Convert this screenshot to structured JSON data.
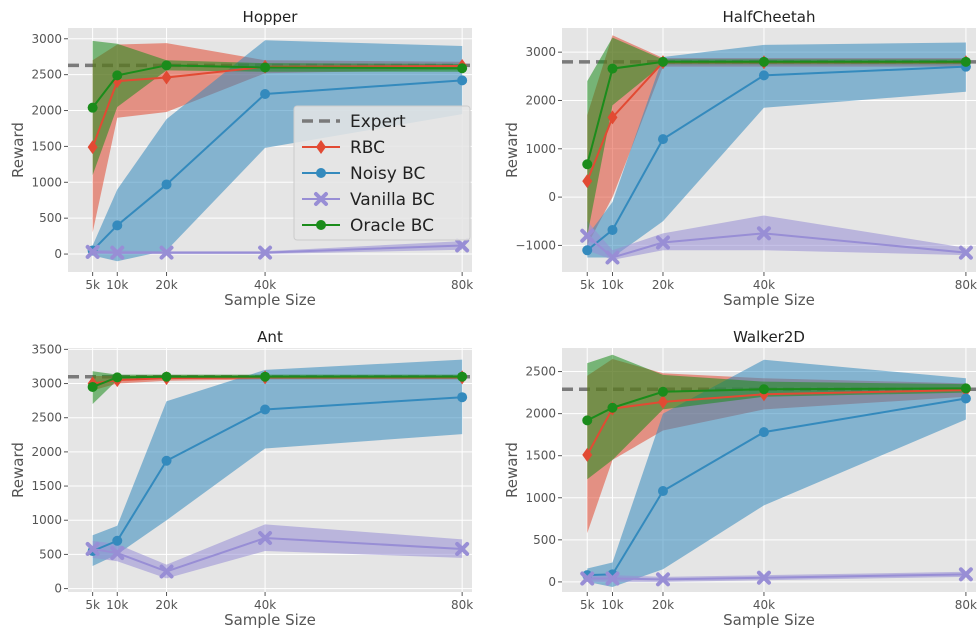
{
  "chart_data": [
    {
      "type": "line",
      "title": "Hopper",
      "xlabel": "Sample Size",
      "ylabel": "Reward",
      "x": [
        5,
        10,
        20,
        40,
        80
      ],
      "x_tick_labels": [
        "5k",
        "10k",
        "20k",
        "40k",
        "80k"
      ],
      "xlim": [
        0,
        82
      ],
      "ylim": [
        -250,
        3150
      ],
      "y_ticks": [
        0,
        500,
        1000,
        1500,
        2000,
        2500,
        3000
      ],
      "expert": 2630,
      "legend": {
        "placement": "center-right",
        "entries": [
          "Expert",
          "RBC",
          "Noisy BC",
          "Vanilla BC",
          "Oracle BC"
        ]
      },
      "series": [
        {
          "name": "RBC",
          "color": "#E24A33",
          "marker": "diamond",
          "values": [
            1490,
            2410,
            2460,
            2610,
            2620
          ],
          "lower": [
            300,
            1900,
            1980,
            2520,
            2570
          ],
          "upper": [
            2700,
            2920,
            2940,
            2700,
            2680
          ]
        },
        {
          "name": "Noisy BC",
          "color": "#348ABD",
          "marker": "circle",
          "values": [
            50,
            400,
            970,
            2230,
            2420
          ],
          "lower": [
            -20,
            -100,
            50,
            1480,
            1950
          ],
          "upper": [
            120,
            900,
            1880,
            2980,
            2900
          ]
        },
        {
          "name": "Vanilla BC",
          "color": "#988ED5",
          "marker": "x",
          "values": [
            30,
            20,
            20,
            20,
            120
          ],
          "lower": [
            0,
            0,
            0,
            0,
            60
          ],
          "upper": [
            60,
            50,
            40,
            40,
            180
          ]
        },
        {
          "name": "Oracle BC",
          "color": "#1B8C1B",
          "marker": "circle",
          "values": [
            2040,
            2490,
            2630,
            2600,
            2590
          ],
          "lower": [
            1100,
            2050,
            2560,
            2540,
            2540
          ],
          "upper": [
            2970,
            2930,
            2700,
            2660,
            2650
          ]
        }
      ]
    },
    {
      "type": "line",
      "title": "HalfCheetah",
      "xlabel": "Sample Size",
      "ylabel": "Reward",
      "x": [
        5,
        10,
        20,
        40,
        80
      ],
      "x_tick_labels": [
        "5k",
        "10k",
        "20k",
        "40k",
        "80k"
      ],
      "xlim": [
        0,
        82
      ],
      "ylim": [
        -1550,
        3500
      ],
      "y_ticks": [
        -1000,
        0,
        1000,
        2000,
        3000
      ],
      "expert": 2800,
      "series": [
        {
          "name": "RBC",
          "color": "#E24A33",
          "marker": "diamond",
          "values": [
            330,
            1650,
            2790,
            2790,
            2790
          ],
          "lower": [
            -1000,
            0,
            2700,
            2700,
            2700
          ],
          "upper": [
            1700,
            3350,
            2880,
            2880,
            2880
          ]
        },
        {
          "name": "Noisy BC",
          "color": "#348ABD",
          "marker": "circle",
          "values": [
            -1100,
            -680,
            1200,
            2520,
            2700
          ],
          "lower": [
            -1250,
            -1250,
            -500,
            1850,
            2180
          ],
          "upper": [
            -800,
            -100,
            2900,
            3150,
            3200
          ]
        },
        {
          "name": "Vanilla BC",
          "color": "#988ED5",
          "marker": "x",
          "values": [
            -800,
            -1250,
            -940,
            -750,
            -1150
          ],
          "lower": [
            -1100,
            -1300,
            -1100,
            -1100,
            -1200
          ],
          "upper": [
            -500,
            -1100,
            -750,
            -380,
            -1050
          ]
        },
        {
          "name": "Oracle BC",
          "color": "#1B8C1B",
          "marker": "circle",
          "values": [
            680,
            2660,
            2800,
            2800,
            2800
          ],
          "lower": [
            -800,
            1900,
            2750,
            2750,
            2750
          ],
          "upper": [
            2400,
            3300,
            2850,
            2850,
            2850
          ]
        }
      ]
    },
    {
      "type": "line",
      "title": "Ant",
      "xlabel": "Sample Size",
      "ylabel": "Reward",
      "x": [
        5,
        10,
        20,
        40,
        80
      ],
      "x_tick_labels": [
        "5k",
        "10k",
        "20k",
        "40k",
        "80k"
      ],
      "xlim": [
        0,
        82
      ],
      "ylim": [
        -50,
        3520
      ],
      "y_ticks": [
        0,
        500,
        1000,
        1500,
        2000,
        2500,
        3000,
        3500
      ],
      "expert": 3100,
      "series": [
        {
          "name": "RBC",
          "color": "#E24A33",
          "marker": "diamond",
          "values": [
            3000,
            3050,
            3080,
            3090,
            3090
          ],
          "lower": [
            2900,
            3000,
            3040,
            3060,
            3060
          ],
          "upper": [
            3110,
            3110,
            3120,
            3120,
            3120
          ]
        },
        {
          "name": "Noisy BC",
          "color": "#348ABD",
          "marker": "circle",
          "values": [
            550,
            700,
            1870,
            2620,
            2800
          ],
          "lower": [
            330,
            500,
            1000,
            2050,
            2260
          ],
          "upper": [
            780,
            920,
            2740,
            3200,
            3350
          ]
        },
        {
          "name": "Vanilla BC",
          "color": "#988ED5",
          "marker": "x",
          "values": [
            580,
            520,
            250,
            740,
            580
          ],
          "lower": [
            450,
            400,
            150,
            550,
            450
          ],
          "upper": [
            700,
            650,
            350,
            940,
            720
          ]
        },
        {
          "name": "Oracle BC",
          "color": "#1B8C1B",
          "marker": "circle",
          "values": [
            2950,
            3090,
            3100,
            3100,
            3100
          ],
          "lower": [
            2700,
            3050,
            3070,
            3070,
            3070
          ],
          "upper": [
            3180,
            3130,
            3130,
            3130,
            3130
          ]
        }
      ]
    },
    {
      "type": "line",
      "title": "Walker2D",
      "xlabel": "Sample Size",
      "ylabel": "Reward",
      "x": [
        5,
        10,
        20,
        40,
        80
      ],
      "x_tick_labels": [
        "5k",
        "10k",
        "20k",
        "40k",
        "80k"
      ],
      "xlim": [
        0,
        82
      ],
      "ylim": [
        -120,
        2780
      ],
      "y_ticks": [
        0,
        500,
        1000,
        1500,
        2000,
        2500
      ],
      "expert": 2290,
      "series": [
        {
          "name": "RBC",
          "color": "#E24A33",
          "marker": "diamond",
          "values": [
            1510,
            2060,
            2140,
            2230,
            2280
          ],
          "lower": [
            580,
            1450,
            1800,
            2050,
            2200
          ],
          "upper": [
            2450,
            2650,
            2480,
            2420,
            2360
          ]
        },
        {
          "name": "Noisy BC",
          "color": "#348ABD",
          "marker": "circle",
          "values": [
            80,
            90,
            1080,
            1780,
            2180
          ],
          "lower": [
            0,
            -60,
            150,
            910,
            1930
          ],
          "upper": [
            160,
            230,
            2000,
            2640,
            2420
          ]
        },
        {
          "name": "Vanilla BC",
          "color": "#988ED5",
          "marker": "x",
          "values": [
            40,
            40,
            30,
            50,
            90
          ],
          "lower": [
            0,
            0,
            0,
            20,
            60
          ],
          "upper": [
            80,
            80,
            60,
            80,
            120
          ]
        },
        {
          "name": "Oracle BC",
          "color": "#1B8C1B",
          "marker": "circle",
          "values": [
            1920,
            2070,
            2260,
            2290,
            2300
          ],
          "lower": [
            1220,
            1450,
            2050,
            2200,
            2250
          ],
          "upper": [
            2600,
            2700,
            2460,
            2380,
            2350
          ]
        }
      ]
    }
  ]
}
